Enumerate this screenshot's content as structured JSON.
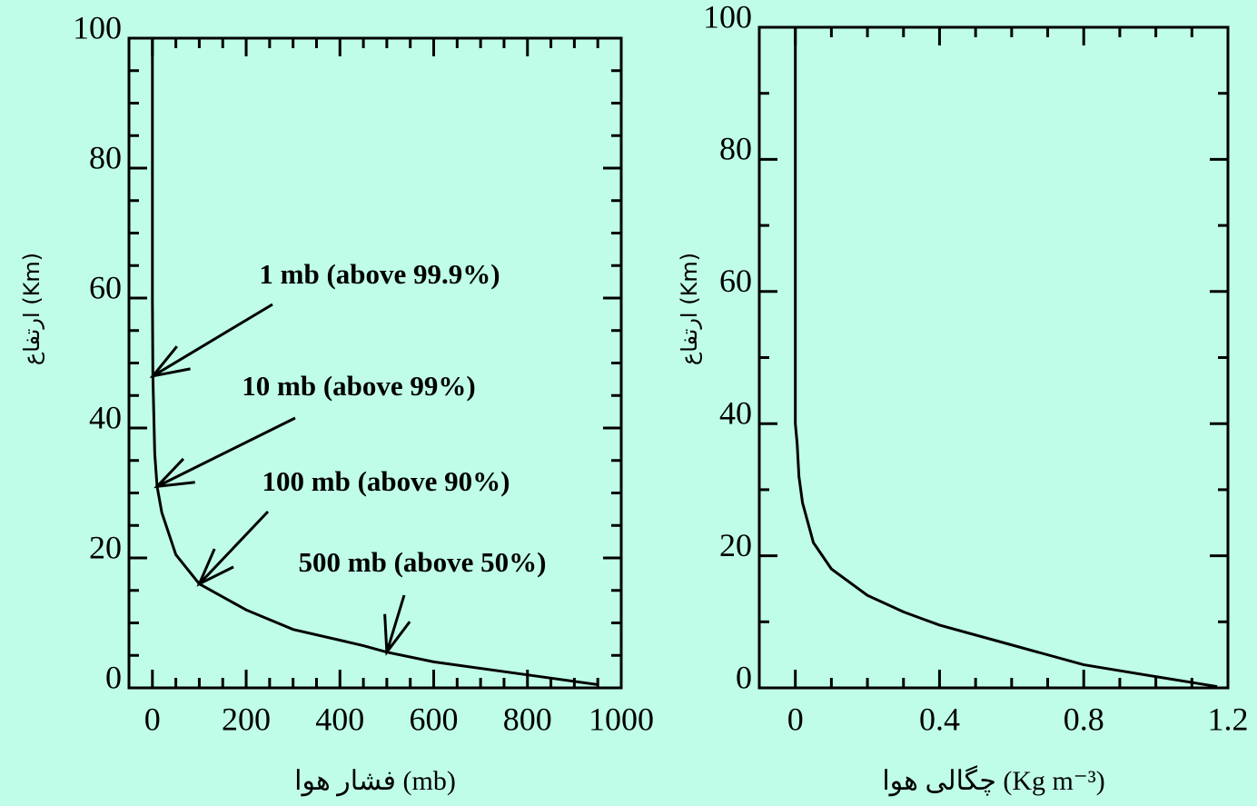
{
  "chart_data": [
    {
      "type": "line",
      "xlabel": "فشار هوا (mb)",
      "ylabel": "ارتفاع (Km)",
      "x": [
        950,
        800,
        600,
        500,
        450,
        300,
        200,
        100,
        50,
        20,
        10,
        5,
        1,
        0,
        0
      ],
      "series": [
        {
          "color": "#000000",
          "values": [
            0.5,
            2,
            4,
            5.5,
            6.5,
            9,
            12,
            16,
            20.5,
            27,
            31,
            36,
            48,
            60,
            100
          ]
        }
      ],
      "xlim": [
        -50,
        1000
      ],
      "ylim": [
        0,
        100
      ],
      "xticks": [
        0,
        200,
        400,
        600,
        800,
        1000
      ],
      "yticks": [
        0,
        20,
        40,
        60,
        80,
        100
      ],
      "xminorticks": [
        -50,
        50,
        100,
        150,
        250,
        300,
        350,
        450,
        500,
        550,
        650,
        700,
        750,
        850,
        900,
        950
      ],
      "yminorticks": [
        5,
        10,
        15,
        25,
        30,
        35,
        45,
        50,
        55,
        65,
        70,
        75,
        85,
        90,
        95
      ],
      "annotations": [
        {
          "text": "1 mb (above 99.9%)",
          "x": 1,
          "y": 48
        },
        {
          "text": "10 mb (above 99%)",
          "x": 10,
          "y": 31
        },
        {
          "text": "100 mb (above 90%)",
          "x": 100,
          "y": 16
        },
        {
          "text": "500 mb (above 50%)",
          "x": 500,
          "y": 5.5
        }
      ]
    },
    {
      "type": "line",
      "xlabel": "چگالی هوا (Kg m⁻³)",
      "ylabel": "ارتفاع (Km)",
      "x": [
        1.17,
        1.0,
        0.8,
        0.6,
        0.4,
        0.3,
        0.2,
        0.1,
        0.05,
        0.02,
        0.01,
        0.005,
        0,
        0
      ],
      "series": [
        {
          "color": "#000000",
          "values": [
            0.2,
            1.7,
            3.5,
            6.5,
            9.5,
            11.5,
            14,
            18,
            22,
            28,
            32,
            37,
            40,
            100
          ]
        }
      ],
      "xlim": [
        -0.1,
        1.2
      ],
      "ylim": [
        0,
        100
      ],
      "xticks": [
        0,
        0.4,
        0.8,
        1.2
      ],
      "yticks": [
        0,
        20,
        40,
        60,
        80,
        100
      ],
      "xminorticks": [
        0.1,
        0.2,
        0.3,
        0.5,
        0.6,
        0.7,
        0.9,
        1.0,
        1.1
      ],
      "yminorticks": [
        10,
        30,
        50,
        70,
        90
      ]
    }
  ]
}
